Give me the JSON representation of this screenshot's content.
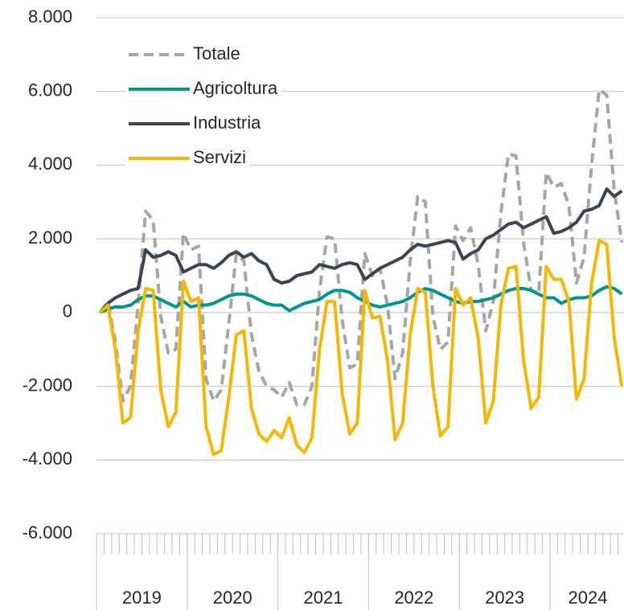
{
  "chart_data": {
    "type": "line",
    "categories": [
      null,
      null,
      null,
      null,
      null,
      null,
      null,
      null,
      null,
      null,
      null,
      null,
      null,
      null,
      null,
      null,
      null,
      null,
      null,
      null,
      null,
      null,
      null,
      null,
      null,
      null,
      null,
      null,
      null,
      null,
      null,
      null,
      null,
      null,
      null,
      null,
      null,
      null,
      null,
      null,
      null,
      null,
      null,
      null,
      null,
      null,
      null,
      null,
      null,
      null,
      null,
      null,
      null,
      null,
      null,
      null,
      null,
      null,
      null,
      null,
      null,
      null,
      null,
      null,
      null,
      null,
      null,
      null,
      null,
      null
    ],
    "groups": [
      {
        "label": "2019",
        "count": 12
      },
      {
        "label": "2020",
        "count": 12
      },
      {
        "label": "2021",
        "count": 12
      },
      {
        "label": "2022",
        "count": 12
      },
      {
        "label": "2023",
        "count": 12
      },
      {
        "label": "2024",
        "count": 10
      }
    ],
    "ylim": [
      -6000,
      8000
    ],
    "yticks": [
      {
        "value": -6000,
        "label": "-6.000"
      },
      {
        "value": -4000,
        "label": "-4.000"
      },
      {
        "value": -2000,
        "label": "-2.000"
      },
      0,
      {
        "value": 2000,
        "label": "2.000"
      },
      {
        "value": 4000,
        "label": "4.000"
      },
      {
        "value": 6000,
        "label": "6.000"
      },
      {
        "value": 8000,
        "label": "8.000"
      }
    ],
    "grid": true,
    "legend": "upper-left",
    "series": [
      {
        "name": "Totale",
        "color": "#a6a6a6",
        "dashed": true,
        "values": [
          0,
          300,
          -800,
          -2400,
          -2000,
          200,
          2750,
          2500,
          -100,
          -1100,
          -1000,
          2150,
          1700,
          1800,
          -1800,
          -2400,
          -2100,
          -300,
          1600,
          1400,
          -600,
          -1600,
          -2000,
          -2100,
          -2300,
          -1900,
          -2500,
          -2500,
          -2000,
          600,
          2050,
          2000,
          -200,
          -1500,
          -1400,
          1600,
          1000,
          1200,
          200,
          -1800,
          -1100,
          1400,
          3150,
          3000,
          -100,
          -1000,
          -800,
          2350,
          1950,
          2300,
          1300,
          -500,
          300,
          2700,
          4300,
          4250,
          1900,
          600,
          500,
          3800,
          3400,
          3500,
          2900,
          800,
          1500,
          4000,
          6050,
          5900,
          3300,
          1900
        ]
      },
      {
        "name": "Agricoltura",
        "color": "#00968f",
        "dashed": false,
        "values": [
          0,
          100,
          150,
          150,
          200,
          350,
          450,
          450,
          350,
          250,
          150,
          300,
          150,
          200,
          200,
          250,
          350,
          450,
          500,
          500,
          450,
          350,
          250,
          200,
          200,
          50,
          150,
          250,
          300,
          350,
          500,
          600,
          600,
          550,
          400,
          300,
          200,
          150,
          200,
          250,
          300,
          400,
          550,
          650,
          600,
          500,
          400,
          300,
          250,
          300,
          300,
          350,
          400,
          500,
          600,
          650,
          650,
          600,
          500,
          400,
          400,
          250,
          350,
          400,
          400,
          450,
          600,
          700,
          650,
          500
        ]
      },
      {
        "name": "Industria",
        "color": "#3b4452",
        "dashed": false,
        "values": [
          0,
          250,
          400,
          500,
          600,
          650,
          1700,
          1500,
          1550,
          1650,
          1550,
          1100,
          1200,
          1300,
          1300,
          1200,
          1350,
          1550,
          1650,
          1500,
          1600,
          1400,
          1300,
          900,
          800,
          850,
          1000,
          1050,
          1100,
          1300,
          1250,
          1200,
          1300,
          1350,
          1300,
          900,
          1050,
          1200,
          1300,
          1400,
          1500,
          1700,
          1850,
          1800,
          1850,
          1900,
          1950,
          1900,
          1450,
          1600,
          1700,
          2000,
          2100,
          2250,
          2400,
          2450,
          2300,
          2400,
          2500,
          2600,
          2150,
          2200,
          2300,
          2450,
          2750,
          2800,
          2900,
          3350,
          3150,
          3300
        ]
      },
      {
        "name": "Servizi",
        "color": "#f5b800",
        "dashed": false,
        "values": [
          0,
          200,
          -1000,
          -3000,
          -2850,
          -500,
          650,
          600,
          -2100,
          -3100,
          -2700,
          850,
          300,
          400,
          -3100,
          -3850,
          -3750,
          -2300,
          -600,
          -500,
          -2600,
          -3300,
          -3500,
          -3200,
          -3400,
          -2850,
          -3600,
          -3800,
          -3400,
          -1000,
          300,
          300,
          -2200,
          -3300,
          -3000,
          600,
          -150,
          -100,
          -1300,
          -3450,
          -3000,
          -600,
          650,
          550,
          -2000,
          -3350,
          -3100,
          650,
          200,
          400,
          -700,
          -3000,
          -2400,
          200,
          1200,
          1250,
          -1300,
          -2600,
          -2300,
          1250,
          900,
          900,
          300,
          -2350,
          -1800,
          800,
          1950,
          1850,
          -700,
          -2000
        ]
      }
    ]
  }
}
